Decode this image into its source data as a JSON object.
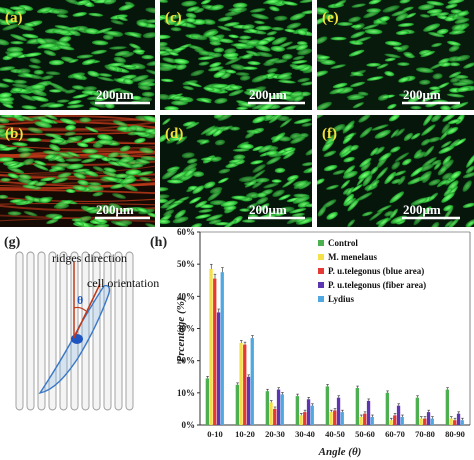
{
  "panels": [
    {
      "id": "a",
      "label": "(a)",
      "scale_text": "200μm",
      "stain": "green"
    },
    {
      "id": "c",
      "label": "(c)",
      "scale_text": "200μm",
      "stain": "green"
    },
    {
      "id": "e",
      "label": "(e)",
      "scale_text": "200μm",
      "stain": "green"
    },
    {
      "id": "b",
      "label": "(b)",
      "scale_text": "200μm",
      "stain": "green-red"
    },
    {
      "id": "d",
      "label": "(d)",
      "scale_text": "200μm",
      "stain": "green"
    },
    {
      "id": "f",
      "label": "(f)",
      "scale_text": "200μm",
      "stain": "green"
    }
  ],
  "schematic": {
    "label": "(g)",
    "ridges_text": "ridges direction",
    "cell_text": "cell orientation",
    "theta_text": "θ"
  },
  "colors": {
    "micrograph_green": "#3fe04a",
    "micrograph_bg": "#06160a",
    "red_fibers": "#c23a1a",
    "label_yellow": "#f2e23c"
  },
  "chart_data": {
    "type": "bar",
    "panel_label": "(h)",
    "xlabel": "Angle (θ)",
    "ylabel": "Prcentage (%)",
    "categories": [
      "0-10",
      "10-20",
      "20-30",
      "30-40",
      "40-50",
      "50-60",
      "60-70",
      "70-80",
      "80-90"
    ],
    "ylim": [
      0,
      60
    ],
    "yticks": [
      "0%",
      "10%",
      "20%",
      "30%",
      "40%",
      "50%",
      "60%"
    ],
    "legend_position": "top-right",
    "series": [
      {
        "name": "Control",
        "color": "#4caf50",
        "values": [
          14.5,
          12.5,
          10.5,
          9,
          12,
          11.5,
          10,
          8.5,
          11
        ]
      },
      {
        "name": "M. menelaus",
        "color": "#f5e04a",
        "values": [
          48.5,
          25.5,
          7,
          3,
          4,
          2.5,
          1.5,
          2,
          2
        ]
      },
      {
        "name": "P. u.telegonus (blue area)",
        "color": "#e53935",
        "values": [
          45.5,
          25,
          5,
          4,
          4.5,
          3.5,
          3,
          2,
          1.5
        ]
      },
      {
        "name": "P. u.telegonus (fiber area)",
        "color": "#5e35b1",
        "values": [
          35,
          15,
          11,
          8,
          8.5,
          7.5,
          6,
          4,
          3.5
        ]
      },
      {
        "name": "Lydius",
        "color": "#4fa8e0",
        "values": [
          47.5,
          27,
          9.5,
          6,
          4,
          2.5,
          2.5,
          2,
          1.5
        ]
      }
    ]
  }
}
